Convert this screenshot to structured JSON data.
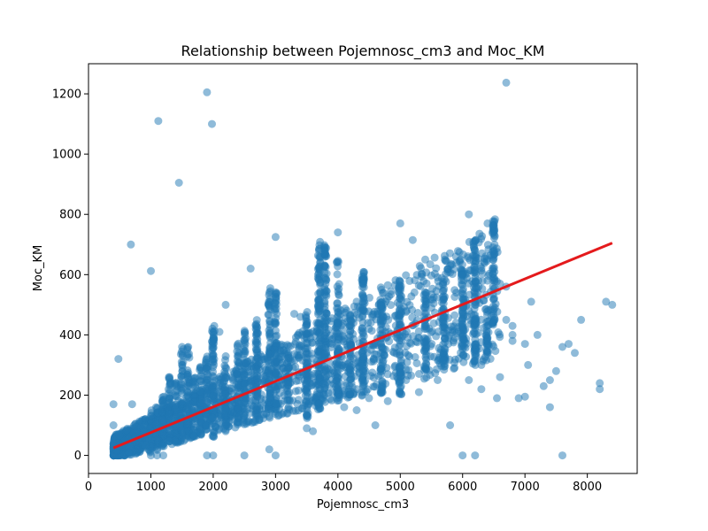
{
  "chart_data": {
    "type": "scatter",
    "title": "Relationship between Pojemnosc_cm3 and Moc_KM",
    "xlabel": "Pojemnosc_cm3",
    "ylabel": "Moc_KM",
    "xlim": [
      0,
      8800
    ],
    "ylim": [
      -60,
      1300
    ],
    "xticks": [
      0,
      1000,
      2000,
      3000,
      4000,
      5000,
      6000,
      7000,
      8000
    ],
    "yticks": [
      0,
      200,
      400,
      600,
      800,
      1000,
      1200
    ],
    "xtick_labels": [
      "0",
      "1000",
      "2000",
      "3000",
      "4000",
      "5000",
      "6000",
      "7000",
      "8000"
    ],
    "ytick_labels": [
      "0",
      "200",
      "400",
      "600",
      "800",
      "1000",
      "1200"
    ],
    "grid": false,
    "point_color": "#1f77b4",
    "line_color": "#e41a1c",
    "regression_line": {
      "x": [
        400,
        8400
      ],
      "y": [
        25,
        705
      ]
    },
    "clusters": [
      {
        "x": 1000,
        "y_min": 10,
        "y_max": 150
      },
      {
        "x": 1100,
        "y_min": 10,
        "y_max": 160
      },
      {
        "x": 1200,
        "y_min": 20,
        "y_max": 200
      },
      {
        "x": 1300,
        "y_min": 30,
        "y_max": 260
      },
      {
        "x": 1400,
        "y_min": 40,
        "y_max": 250
      },
      {
        "x": 1500,
        "y_min": 50,
        "y_max": 360
      },
      {
        "x": 1600,
        "y_min": 60,
        "y_max": 360
      },
      {
        "x": 1700,
        "y_min": 60,
        "y_max": 260
      },
      {
        "x": 1800,
        "y_min": 70,
        "y_max": 300
      },
      {
        "x": 1900,
        "y_min": 80,
        "y_max": 330
      },
      {
        "x": 2000,
        "y_min": 60,
        "y_max": 430
      },
      {
        "x": 2200,
        "y_min": 80,
        "y_max": 330
      },
      {
        "x": 2400,
        "y_min": 100,
        "y_max": 380
      },
      {
        "x": 2500,
        "y_min": 100,
        "y_max": 420
      },
      {
        "x": 2700,
        "y_min": 120,
        "y_max": 450
      },
      {
        "x": 2900,
        "y_min": 150,
        "y_max": 560
      },
      {
        "x": 3000,
        "y_min": 150,
        "y_max": 550
      },
      {
        "x": 3200,
        "y_min": 180,
        "y_max": 370
      },
      {
        "x": 3500,
        "y_min": 120,
        "y_max": 480
      },
      {
        "x": 3700,
        "y_min": 150,
        "y_max": 720
      },
      {
        "x": 3800,
        "y_min": 200,
        "y_max": 700
      },
      {
        "x": 4000,
        "y_min": 180,
        "y_max": 650
      },
      {
        "x": 4200,
        "y_min": 200,
        "y_max": 480
      },
      {
        "x": 4400,
        "y_min": 160,
        "y_max": 620
      },
      {
        "x": 4700,
        "y_min": 200,
        "y_max": 520
      },
      {
        "x": 5000,
        "y_min": 200,
        "y_max": 580
      },
      {
        "x": 5400,
        "y_min": 250,
        "y_max": 560
      },
      {
        "x": 5700,
        "y_min": 280,
        "y_max": 580
      },
      {
        "x": 6000,
        "y_min": 300,
        "y_max": 640
      },
      {
        "x": 6200,
        "y_min": 300,
        "y_max": 720
      },
      {
        "x": 6400,
        "y_min": 330,
        "y_max": 490
      },
      {
        "x": 6500,
        "y_min": 430,
        "y_max": 800
      }
    ],
    "points": [
      [
        400,
        30
      ],
      [
        400,
        100
      ],
      [
        400,
        170
      ],
      [
        450,
        20
      ],
      [
        480,
        320
      ],
      [
        700,
        170
      ],
      [
        680,
        700
      ],
      [
        1000,
        612
      ],
      [
        1120,
        1110
      ],
      [
        1450,
        905
      ],
      [
        1900,
        1205
      ],
      [
        1980,
        1100
      ],
      [
        2600,
        620
      ],
      [
        3000,
        725
      ],
      [
        4000,
        740
      ],
      [
        5000,
        770
      ],
      [
        5200,
        715
      ],
      [
        6700,
        1237
      ],
      [
        8300,
        510
      ],
      [
        8400,
        500
      ],
      [
        8200,
        240
      ],
      [
        8200,
        220
      ],
      [
        7900,
        450
      ],
      [
        7600,
        360
      ],
      [
        7700,
        370
      ],
      [
        7800,
        340
      ],
      [
        7500,
        280
      ],
      [
        7400,
        250
      ],
      [
        7300,
        230
      ],
      [
        7200,
        400
      ],
      [
        7000,
        370
      ],
      [
        7050,
        300
      ],
      [
        7100,
        510
      ],
      [
        6900,
        190
      ],
      [
        6800,
        380
      ],
      [
        6700,
        450
      ],
      [
        6600,
        260
      ],
      [
        6550,
        190
      ],
      [
        6300,
        220
      ],
      [
        6100,
        250
      ],
      [
        6000,
        0
      ],
      [
        6200,
        0
      ],
      [
        6000,
        470
      ],
      [
        6100,
        480
      ],
      [
        6200,
        500
      ],
      [
        7600,
        0
      ],
      [
        7400,
        160
      ],
      [
        7000,
        195
      ],
      [
        6800,
        400
      ],
      [
        6300,
        300
      ],
      [
        3000,
        0
      ],
      [
        2900,
        20
      ],
      [
        2600,
        240
      ],
      [
        2700,
        280
      ],
      [
        2200,
        500
      ],
      [
        2100,
        410
      ],
      [
        1500,
        360
      ],
      [
        1600,
        360
      ],
      [
        1400,
        240
      ],
      [
        1300,
        260
      ],
      [
        1200,
        0
      ],
      [
        1100,
        0
      ],
      [
        1000,
        0
      ],
      [
        1900,
        0
      ],
      [
        2000,
        0
      ],
      [
        2500,
        0
      ],
      [
        900,
        100
      ],
      [
        800,
        50
      ],
      [
        750,
        60
      ],
      [
        600,
        30
      ],
      [
        5800,
        100
      ],
      [
        5300,
        210
      ],
      [
        5600,
        250
      ],
      [
        4800,
        180
      ],
      [
        4600,
        100
      ],
      [
        4500,
        190
      ],
      [
        4300,
        150
      ],
      [
        4100,
        160
      ],
      [
        3600,
        80
      ],
      [
        3500,
        90
      ],
      [
        3300,
        470
      ],
      [
        3400,
        460
      ],
      [
        3700,
        620
      ],
      [
        4300,
        510
      ],
      [
        4500,
        420
      ],
      [
        5100,
        480
      ],
      [
        5500,
        490
      ],
      [
        5900,
        540
      ],
      [
        6400,
        580
      ],
      [
        6500,
        620
      ],
      [
        6400,
        770
      ],
      [
        6100,
        800
      ],
      [
        6600,
        570
      ],
      [
        6700,
        560
      ],
      [
        6800,
        430
      ],
      [
        5400,
        650
      ],
      [
        5800,
        630
      ],
      [
        5900,
        640
      ],
      [
        4800,
        565
      ],
      [
        4700,
        550
      ]
    ]
  }
}
